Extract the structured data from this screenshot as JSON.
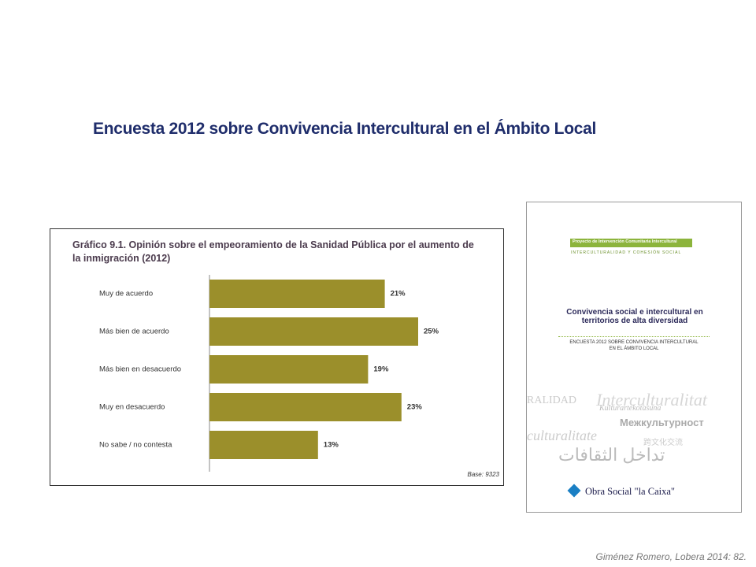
{
  "slide_title": "Encuesta 2012 sobre Convivencia Intercultural en el Ámbito Local",
  "citation": "Giménez Romero, Lobera 2014: 82.",
  "chart_data": {
    "type": "bar",
    "orientation": "horizontal",
    "title": "Gráfico 9.1. Opinión sobre el empeoramiento de la Sanidad Pública por el aumento de la inmigración (2012)",
    "categories": [
      "Muy de acuerdo",
      "Más bien de acuerdo",
      "Más bien en desacuerdo",
      "Muy en desacuerdo",
      "No sabe / no contesta"
    ],
    "values": [
      21,
      25,
      19,
      23,
      13
    ],
    "value_labels": [
      "21%",
      "25%",
      "19%",
      "23%",
      "13%"
    ],
    "color": "#9b8f2b",
    "note": "Base: 9323"
  },
  "cover": {
    "project": "Proyecto de Intervención Comunitaria Intercultural",
    "subtitle": "INTERCULTURALIDAD Y COHESIÓN SOCIAL",
    "title": "Convivencia social e intercultural en territorios de alta diversidad",
    "survey": "ENCUESTA 2012 SOBRE CONVIVENCIA INTERCULTURAL EN EL ÁMBITO LOCAL",
    "words": [
      "RALIDAD",
      "Interculturalitat",
      "Kulturartekotasuna",
      "Межкультурност",
      "culturalitate",
      "跨文化交流",
      "تداخل الثقافات"
    ],
    "publisher": "Obra Social \"la Caixa\""
  }
}
